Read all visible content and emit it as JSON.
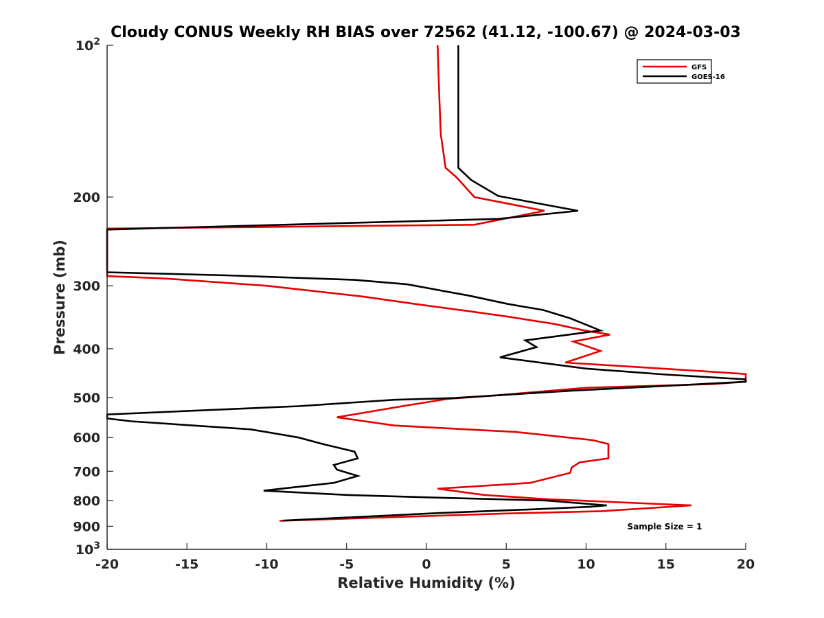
{
  "chart_data": {
    "type": "line",
    "title": "Cloudy CONUS Weekly RH BIAS over 72562 (41.12, -100.67) @ 2024-03-03",
    "xlabel": "Relative Humidity (%)",
    "ylabel": "Pressure (mb)",
    "xlim": [
      -20,
      20
    ],
    "ylim": [
      100,
      1000
    ],
    "y_scale": "log",
    "y_reversed": true,
    "x_ticks": [
      "-20",
      "-15",
      "-10",
      "-5",
      "0",
      "5",
      "10",
      "15",
      "20"
    ],
    "y_ticks": [
      {
        "value": 100,
        "base": "10",
        "exp": "2"
      },
      {
        "value": 200,
        "label": "200"
      },
      {
        "value": 300,
        "label": "300"
      },
      {
        "value": 400,
        "label": "400"
      },
      {
        "value": 500,
        "label": "500"
      },
      {
        "value": 600,
        "label": "600"
      },
      {
        "value": 700,
        "label": "700"
      },
      {
        "value": 800,
        "label": "800"
      },
      {
        "value": 900,
        "label": "900"
      },
      {
        "value": 1000,
        "base": "10",
        "exp": "3"
      }
    ],
    "grid": false,
    "legend_position": "top-right",
    "annotation": "Sample Size = 1",
    "series": [
      {
        "name": "GFS",
        "color": "#e60000",
        "points": [
          [
            0.7,
            100
          ],
          [
            0.8,
            125
          ],
          [
            0.9,
            150
          ],
          [
            1.2,
            175
          ],
          [
            1.9,
            183
          ],
          [
            3.0,
            200
          ],
          [
            7.4,
            213
          ],
          [
            3.0,
            227
          ],
          [
            -20,
            231
          ],
          [
            -20,
            287
          ],
          [
            -16.5,
            290
          ],
          [
            -10.0,
            300
          ],
          [
            -4.0,
            315
          ],
          [
            -0.7,
            326
          ],
          [
            2.7,
            337
          ],
          [
            5.0,
            345
          ],
          [
            8.0,
            357
          ],
          [
            9.9,
            368
          ],
          [
            11.5,
            375
          ],
          [
            9.2,
            387
          ],
          [
            10.9,
            404
          ],
          [
            8.7,
            426
          ],
          [
            15.8,
            440
          ],
          [
            20,
            449
          ],
          [
            20,
            465
          ],
          [
            17.9,
            470
          ],
          [
            10.0,
            478
          ],
          [
            4.0,
            496
          ],
          [
            1.3,
            503
          ],
          [
            -1.5,
            520
          ],
          [
            -5.6,
            547
          ],
          [
            -2.0,
            568
          ],
          [
            5.6,
            585
          ],
          [
            10.4,
            607
          ],
          [
            11.4,
            618
          ],
          [
            11.4,
            660
          ],
          [
            9.6,
            672
          ],
          [
            9.1,
            688
          ],
          [
            9.0,
            705
          ],
          [
            6.5,
            738
          ],
          [
            0.7,
            758
          ],
          [
            3.6,
            780
          ],
          [
            7.5,
            795
          ],
          [
            16.6,
            818
          ],
          [
            11.0,
            840
          ],
          [
            5.0,
            849
          ],
          [
            -9.2,
            878
          ]
        ]
      },
      {
        "name": "GOES-16",
        "color": "#000000",
        "points": [
          [
            2.0,
            100
          ],
          [
            2.0,
            125
          ],
          [
            2.0,
            150
          ],
          [
            2.0,
            175
          ],
          [
            2.8,
            185
          ],
          [
            4.5,
            199
          ],
          [
            9.5,
            213
          ],
          [
            4.5,
            221
          ],
          [
            -20,
            232
          ],
          [
            -20,
            282
          ],
          [
            -12.5,
            286
          ],
          [
            -4.5,
            292
          ],
          [
            -1.2,
            298
          ],
          [
            2.7,
            314
          ],
          [
            5.1,
            326
          ],
          [
            7.3,
            335
          ],
          [
            9.0,
            348
          ],
          [
            10.9,
            368
          ],
          [
            6.2,
            385
          ],
          [
            6.9,
            397
          ],
          [
            4.6,
            416
          ],
          [
            10.0,
            438
          ],
          [
            15.0,
            450
          ],
          [
            20,
            460
          ],
          [
            20,
            465
          ],
          [
            15.0,
            474
          ],
          [
            9.3,
            484
          ],
          [
            1.7,
            501
          ],
          [
            -2.0,
            505
          ],
          [
            -8.0,
            520
          ],
          [
            -20,
            540
          ],
          [
            -20,
            550
          ],
          [
            -18.5,
            557
          ],
          [
            -11.0,
            578
          ],
          [
            -8.0,
            600
          ],
          [
            -6.5,
            618
          ],
          [
            -4.5,
            640
          ],
          [
            -4.3,
            660
          ],
          [
            -5.8,
            680
          ],
          [
            -5.6,
            695
          ],
          [
            -4.3,
            715
          ],
          [
            -5.8,
            738
          ],
          [
            -10.2,
            765
          ],
          [
            -5.0,
            780
          ],
          [
            1.0,
            790
          ],
          [
            7.5,
            800
          ],
          [
            11.3,
            818
          ],
          [
            10.3,
            823
          ],
          [
            7.0,
            832
          ],
          [
            0.5,
            848
          ],
          [
            -9.0,
            877
          ]
        ]
      }
    ]
  }
}
